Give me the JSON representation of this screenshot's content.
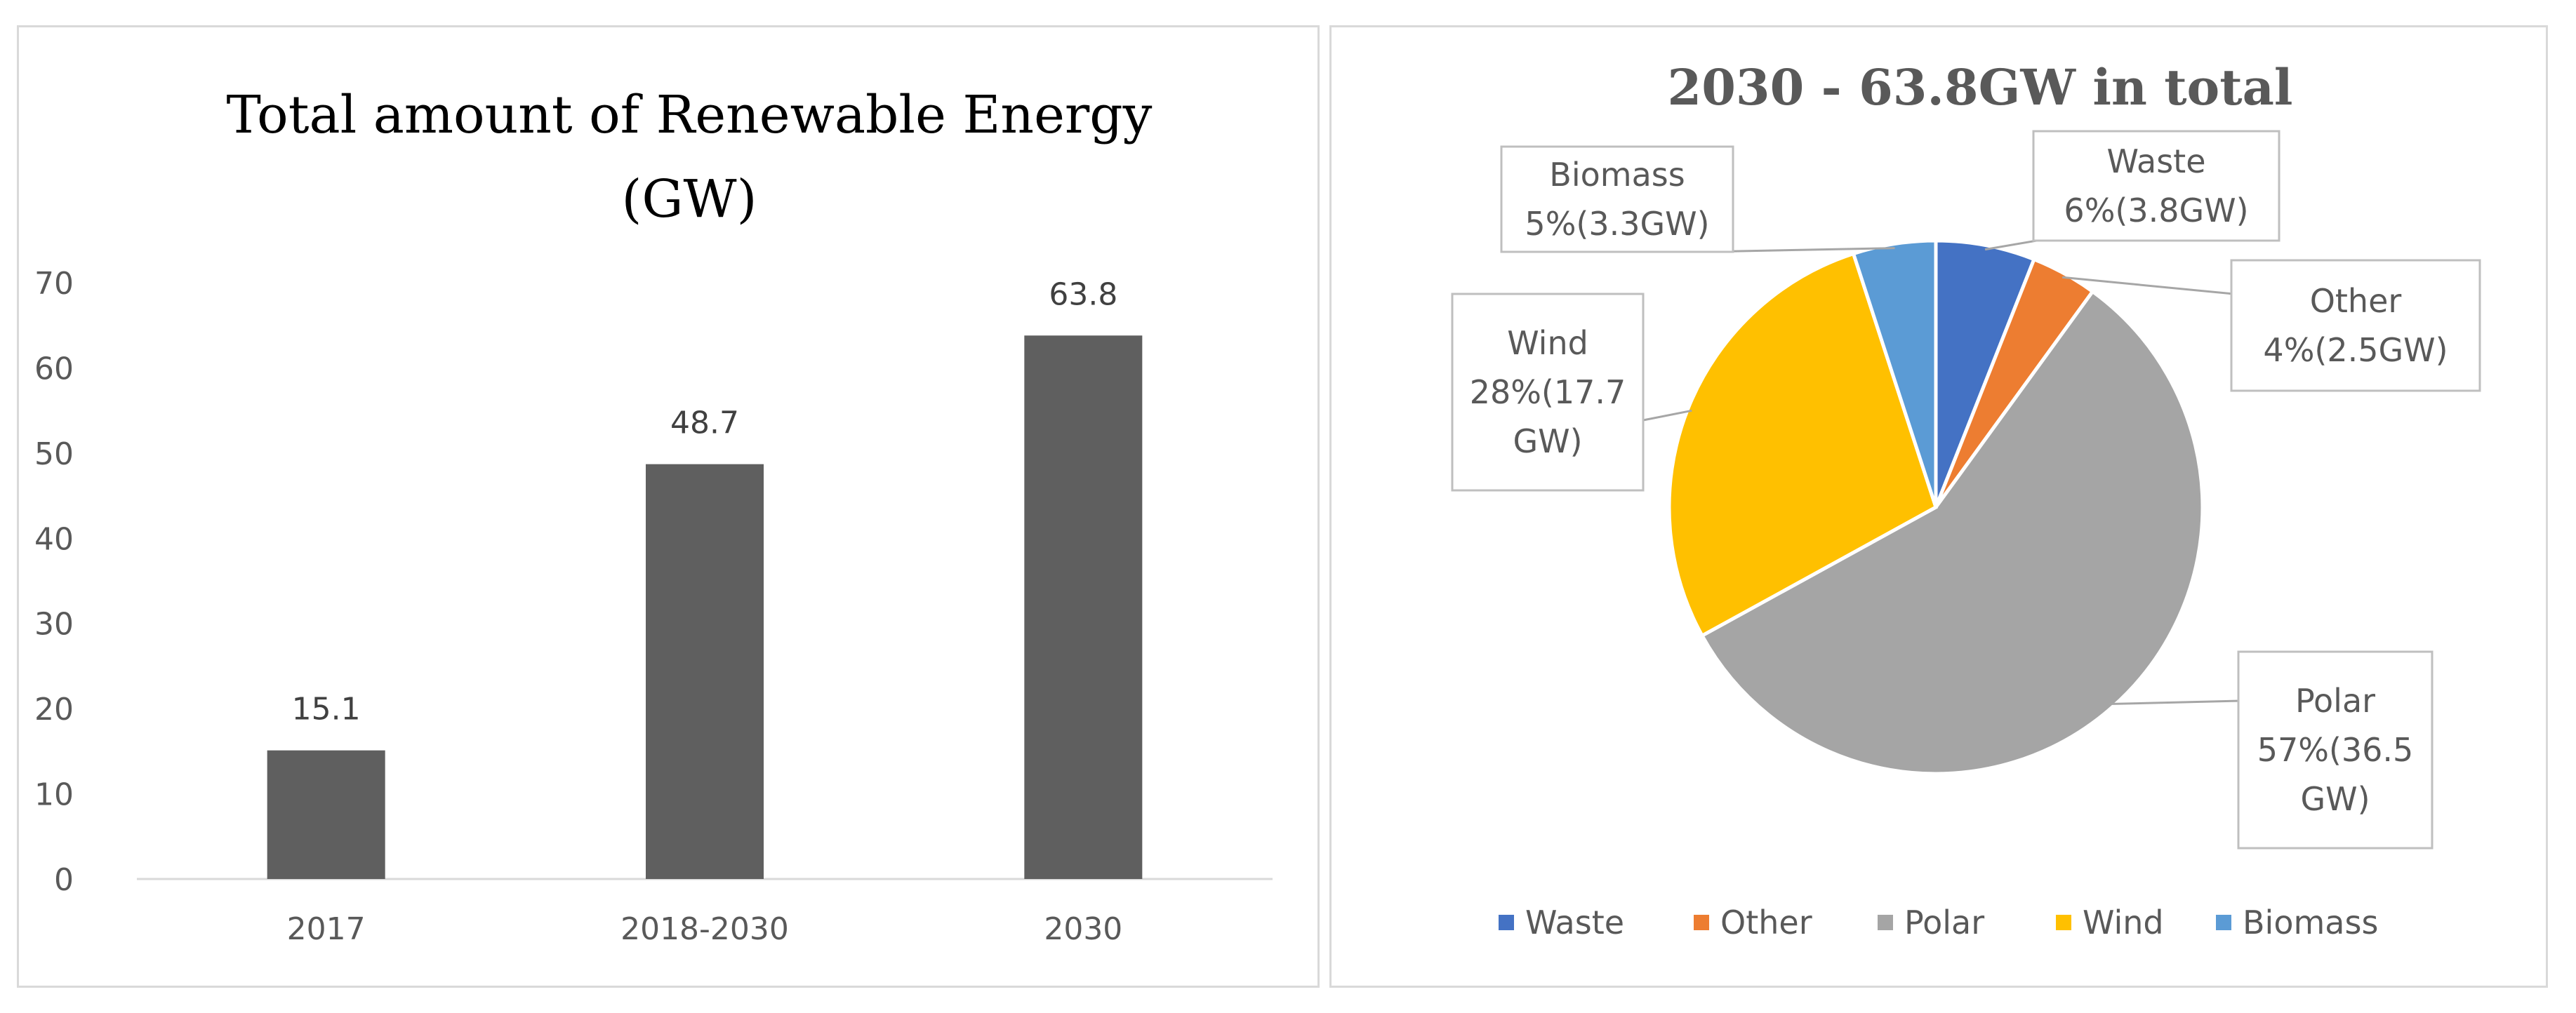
{
  "chart_data": [
    {
      "type": "bar",
      "title_lines": [
        "Total amount of Renewable Energy",
        "(GW)"
      ],
      "categories": [
        "2017",
        "2018-2030",
        "2030"
      ],
      "values": [
        15.1,
        48.7,
        63.8
      ],
      "value_labels": [
        "15.1",
        "48.7",
        "63.8"
      ],
      "ylim": [
        0,
        70
      ],
      "yticks": [
        "0",
        "10",
        "20",
        "30",
        "40",
        "50",
        "60",
        "70"
      ],
      "xlabel": "",
      "ylabel": "",
      "grid": false,
      "bar_color": "#5f5f5f"
    },
    {
      "type": "pie",
      "title": "2030 - 63.8GW in total",
      "slices": [
        {
          "name": "Waste",
          "percent": 6,
          "label_lines": [
            "Waste",
            "6%(3.8GW)"
          ],
          "color": "#4472c4"
        },
        {
          "name": "Other",
          "percent": 4,
          "label_lines": [
            "Other",
            "4%(2.5GW)"
          ],
          "color": "#ed7d31"
        },
        {
          "name": "Polar",
          "percent": 57,
          "label_lines": [
            "Polar",
            "57%(36.5",
            "GW)"
          ],
          "color": "#a5a5a5"
        },
        {
          "name": "Wind",
          "percent": 28,
          "label_lines": [
            "Wind",
            "28%(17.7",
            "GW)"
          ],
          "color": "#ffc000"
        },
        {
          "name": "Biomass",
          "percent": 5,
          "label_lines": [
            "Biomass",
            "5%(3.3GW)"
          ],
          "color": "#5b9bd5"
        }
      ],
      "legend": [
        "Waste",
        "Other",
        "Polar",
        "Wind",
        "Biomass"
      ],
      "legend_position": "bottom"
    }
  ]
}
